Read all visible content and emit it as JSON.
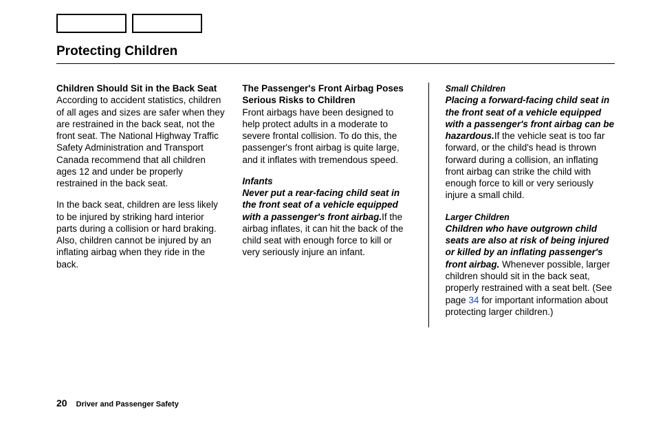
{
  "title": "Protecting Children",
  "col1": {
    "heading": "Children Should Sit in the Back Seat",
    "p1": "According to accident statistics, children of all ages and sizes are safer when they are restrained in the back seat, not the front seat. The National Highway Traffic Safety Administration and Transport Canada recommend that all children ages 12 and under be properly restrained in the back seat.",
    "p2": "In the back seat, children are less likely to be injured by striking hard interior parts during a collision or hard braking. Also, children cannot be injured by an inflating airbag when they ride in the back."
  },
  "col2": {
    "heading": "The Passenger's Front Airbag Poses Serious Risks to Children",
    "p1": "Front airbags have been designed to help protect adults in a moderate to severe frontal collision. To do this, the passenger's front airbag is quite large, and it inflates with tremendous speed.",
    "sub1": "Infants",
    "warn1": "Never put a rear-facing child seat in the front seat of a vehicle equipped with a passenger's front airbag.",
    "p2": "If the airbag inflates, it can hit the back of the child seat with enough force to kill or very seriously injure an infant."
  },
  "col3": {
    "sub1": "Small Children",
    "warn1": "Placing a forward-facing child seat in the front seat of a vehicle equipped with a passenger's front airbag can be hazardous.",
    "p1": "If the vehicle seat is too far forward, or the child's head is thrown forward during a collision, an inflating front airbag can strike the child with enough force to kill or very seriously injure a small child.",
    "sub2": "Larger Children",
    "warn2": "Children who have outgrown child seats are also at risk of being injured or killed by an inflating passenger's front airbag.",
    "p2a": " Whenever possible, larger children should sit in the back seat, properly restrained with a seat belt. (See page ",
    "pageref": "34",
    "p2b": " for important information about protecting larger children.)"
  },
  "footer": {
    "pagenum": "20",
    "section": "Driver and Passenger Safety"
  }
}
